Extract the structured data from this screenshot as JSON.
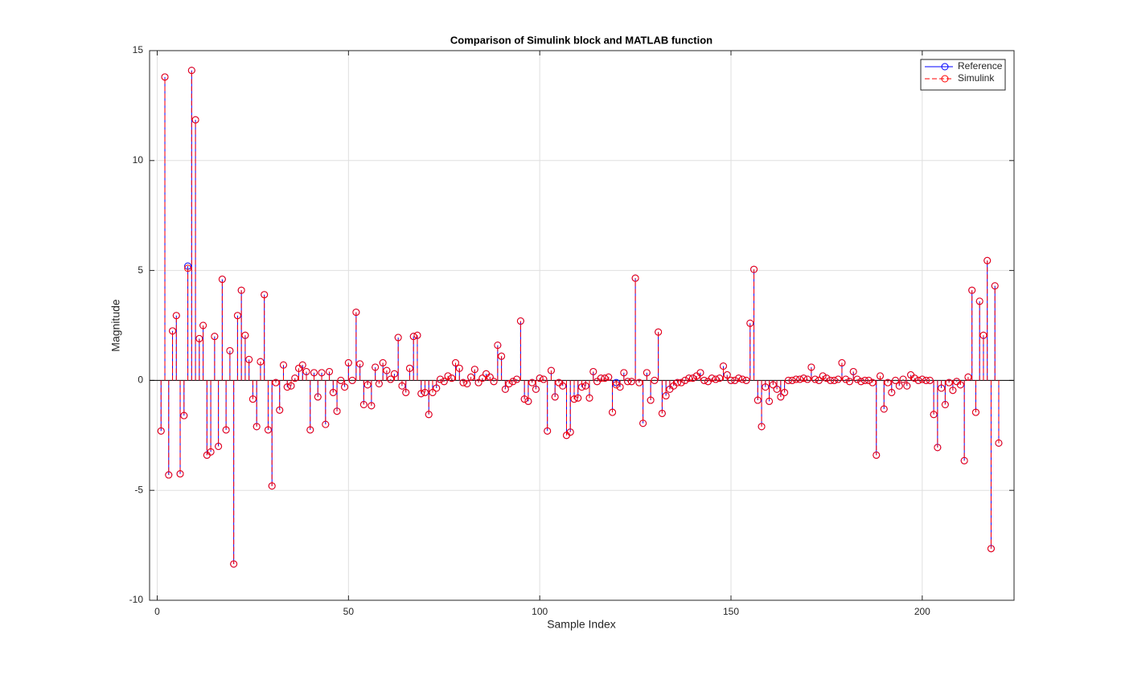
{
  "chart_data": {
    "type": "stem",
    "title": "Comparison of Simulink block and MATLAB function",
    "xlabel": "Sample Index",
    "ylabel": "Magnitude",
    "x": [
      1,
      2,
      3,
      4,
      5,
      6,
      7,
      8,
      9,
      10,
      11,
      12,
      13,
      14,
      15,
      16,
      17,
      18,
      19,
      20,
      21,
      22,
      23,
      24,
      25,
      26,
      27,
      28,
      29,
      30,
      31,
      32,
      33,
      34,
      35,
      36,
      37,
      38,
      39,
      40,
      41,
      42,
      43,
      44,
      45,
      46,
      47,
      48,
      49,
      50,
      51,
      52,
      53,
      54,
      55,
      56,
      57,
      58,
      59,
      60,
      61,
      62,
      63,
      64,
      65,
      66,
      67,
      68,
      69,
      70,
      71,
      72,
      73,
      74,
      75,
      76,
      77,
      78,
      79,
      80,
      81,
      82,
      83,
      84,
      85,
      86,
      87,
      88,
      89,
      90,
      91,
      92,
      93,
      94,
      95,
      96,
      97,
      98,
      99,
      100,
      101,
      102,
      103,
      104,
      105,
      106,
      107,
      108,
      109,
      110,
      111,
      112,
      113,
      114,
      115,
      116,
      117,
      118,
      119,
      120,
      121,
      122,
      123,
      124,
      125,
      126,
      127,
      128,
      129,
      130,
      131,
      132,
      133,
      134,
      135,
      136,
      137,
      138,
      139,
      140,
      141,
      142,
      143,
      144,
      145,
      146,
      147,
      148,
      149,
      150,
      151,
      152,
      153,
      154,
      155,
      156,
      157,
      158,
      159,
      160,
      161,
      162,
      163,
      164,
      165,
      166,
      167,
      168,
      169,
      170,
      171,
      172,
      173,
      174,
      175,
      176,
      177,
      178,
      179,
      180,
      181,
      182,
      183,
      184,
      185,
      186,
      187,
      188,
      189,
      190,
      191,
      192,
      193,
      194,
      195,
      196,
      197,
      198,
      199,
      200,
      201,
      202,
      203,
      204,
      205,
      206,
      207,
      208,
      209,
      210,
      211,
      212,
      213,
      214,
      215,
      216,
      217,
      218,
      219,
      220
    ],
    "series": [
      {
        "name": "Reference",
        "color": "#0000ff",
        "dash": "solid",
        "values": [
          -2.3,
          13.8,
          -4.3,
          2.25,
          2.95,
          -4.25,
          -1.6,
          5.2,
          14.1,
          11.85,
          1.9,
          2.5,
          -3.4,
          -3.25,
          2.0,
          -3.0,
          4.6,
          -2.25,
          1.35,
          -8.35,
          2.95,
          4.1,
          2.05,
          0.95,
          -0.85,
          -2.1,
          0.85,
          3.9,
          -2.25,
          -4.8,
          -0.1,
          -1.35,
          0.7,
          -0.3,
          -0.25,
          0.1,
          0.55,
          0.7,
          0.4,
          -2.25,
          0.35,
          -0.75,
          0.35,
          -2.0,
          0.4,
          -0.55,
          -1.4,
          0.0,
          -0.3,
          0.8,
          0.0,
          3.1,
          0.75,
          -1.1,
          -0.2,
          -1.15,
          0.6,
          -0.15,
          0.8,
          0.45,
          0.05,
          0.3,
          1.95,
          -0.25,
          -0.55,
          0.55,
          2.0,
          2.05,
          -0.6,
          -0.55,
          -1.55,
          -0.55,
          -0.35,
          0.05,
          -0.05,
          0.2,
          0.1,
          0.8,
          0.55,
          -0.1,
          -0.15,
          0.15,
          0.5,
          -0.1,
          0.1,
          0.3,
          0.15,
          -0.05,
          1.6,
          1.1,
          -0.4,
          -0.15,
          -0.05,
          0.05,
          2.7,
          -0.85,
          -0.95,
          -0.1,
          -0.4,
          0.1,
          0.05,
          -2.3,
          0.45,
          -0.75,
          -0.1,
          -0.25,
          -2.5,
          -2.35,
          -0.85,
          -0.8,
          -0.3,
          -0.25,
          -0.8,
          0.4,
          -0.05,
          0.1,
          0.1,
          0.15,
          -1.45,
          -0.1,
          -0.3,
          0.35,
          -0.05,
          -0.05,
          4.65,
          -0.1,
          -1.95,
          0.35,
          -0.9,
          0.0,
          2.2,
          -1.5,
          -0.7,
          -0.4,
          -0.25,
          -0.1,
          -0.1,
          0.0,
          0.1,
          0.1,
          0.2,
          0.35,
          0.0,
          -0.05,
          0.1,
          0.05,
          0.1,
          0.65,
          0.25,
          0.0,
          0.0,
          0.1,
          0.05,
          0.0,
          2.6,
          5.05,
          -0.9,
          -2.1,
          -0.3,
          -0.95,
          -0.2,
          -0.4,
          -0.75,
          -0.55,
          0.0,
          0.0,
          0.05,
          0.05,
          0.1,
          0.05,
          0.6,
          0.05,
          0.0,
          0.2,
          0.1,
          0.0,
          0.0,
          0.05,
          0.8,
          0.05,
          -0.05,
          0.4,
          0.05,
          -0.05,
          0.0,
          0.0,
          -0.1,
          -3.4,
          0.2,
          -1.3,
          -0.1,
          -0.55,
          0.0,
          -0.25,
          0.05,
          -0.25,
          0.25,
          0.1,
          0.0,
          0.05,
          0.0,
          0.0,
          -1.55,
          -3.05,
          -0.35,
          -1.1,
          -0.1,
          -0.45,
          -0.05,
          -0.2,
          -3.65,
          0.15,
          4.1,
          -1.45,
          3.6,
          2.05,
          5.45,
          -7.65,
          4.3,
          -2.85
        ]
      },
      {
        "name": "Simulink",
        "color": "#ff0000",
        "dash": "dashed",
        "values": [
          -2.3,
          13.8,
          -4.3,
          2.25,
          2.95,
          -4.25,
          -1.6,
          5.1,
          14.1,
          11.85,
          1.9,
          2.5,
          -3.4,
          -3.25,
          2.0,
          -3.0,
          4.6,
          -2.25,
          1.35,
          -8.35,
          2.95,
          4.1,
          2.05,
          0.95,
          -0.85,
          -2.1,
          0.85,
          3.9,
          -2.25,
          -4.8,
          -0.1,
          -1.35,
          0.7,
          -0.3,
          -0.25,
          0.1,
          0.55,
          0.7,
          0.4,
          -2.25,
          0.35,
          -0.75,
          0.35,
          -2.0,
          0.4,
          -0.55,
          -1.4,
          0.0,
          -0.3,
          0.8,
          0.0,
          3.1,
          0.75,
          -1.1,
          -0.2,
          -1.15,
          0.6,
          -0.15,
          0.8,
          0.45,
          0.05,
          0.3,
          1.95,
          -0.25,
          -0.55,
          0.55,
          2.0,
          2.05,
          -0.6,
          -0.55,
          -1.55,
          -0.55,
          -0.35,
          0.05,
          -0.05,
          0.2,
          0.1,
          0.8,
          0.55,
          -0.1,
          -0.15,
          0.15,
          0.5,
          -0.1,
          0.1,
          0.3,
          0.15,
          -0.05,
          1.6,
          1.1,
          -0.4,
          -0.15,
          -0.05,
          0.05,
          2.7,
          -0.85,
          -0.95,
          -0.1,
          -0.4,
          0.1,
          0.05,
          -2.3,
          0.45,
          -0.75,
          -0.1,
          -0.25,
          -2.5,
          -2.35,
          -0.85,
          -0.8,
          -0.3,
          -0.25,
          -0.8,
          0.4,
          -0.05,
          0.1,
          0.1,
          0.15,
          -1.45,
          -0.2,
          -0.3,
          0.35,
          -0.05,
          -0.05,
          4.65,
          -0.1,
          -1.95,
          0.35,
          -0.9,
          0.0,
          2.2,
          -1.5,
          -0.7,
          -0.4,
          -0.25,
          -0.1,
          -0.1,
          0.0,
          0.1,
          0.1,
          0.2,
          0.35,
          0.0,
          -0.05,
          0.1,
          0.05,
          0.1,
          0.65,
          0.25,
          0.0,
          0.0,
          0.1,
          0.05,
          0.0,
          2.6,
          5.05,
          -0.9,
          -2.1,
          -0.3,
          -0.95,
          -0.2,
          -0.4,
          -0.75,
          -0.55,
          0.0,
          0.0,
          0.05,
          0.05,
          0.1,
          0.05,
          0.6,
          0.05,
          0.0,
          0.2,
          0.1,
          0.0,
          0.0,
          0.05,
          0.8,
          0.05,
          -0.05,
          0.4,
          0.05,
          -0.05,
          0.0,
          0.0,
          -0.1,
          -3.4,
          0.2,
          -1.3,
          -0.1,
          -0.55,
          0.0,
          -0.25,
          0.05,
          -0.25,
          0.25,
          0.1,
          0.0,
          0.05,
          0.0,
          0.0,
          -1.55,
          -3.05,
          -0.35,
          -1.1,
          -0.1,
          -0.45,
          -0.05,
          -0.2,
          -3.65,
          0.15,
          4.1,
          -1.45,
          3.6,
          2.05,
          5.45,
          -7.65,
          4.3,
          -2.85
        ]
      }
    ],
    "xlim": [
      -2,
      224
    ],
    "ylim": [
      -10,
      15
    ],
    "xticks": [
      0,
      50,
      100,
      150,
      200
    ],
    "yticks": [
      -10,
      -5,
      0,
      5,
      10,
      15
    ],
    "grid": true,
    "legend": "northeast"
  }
}
